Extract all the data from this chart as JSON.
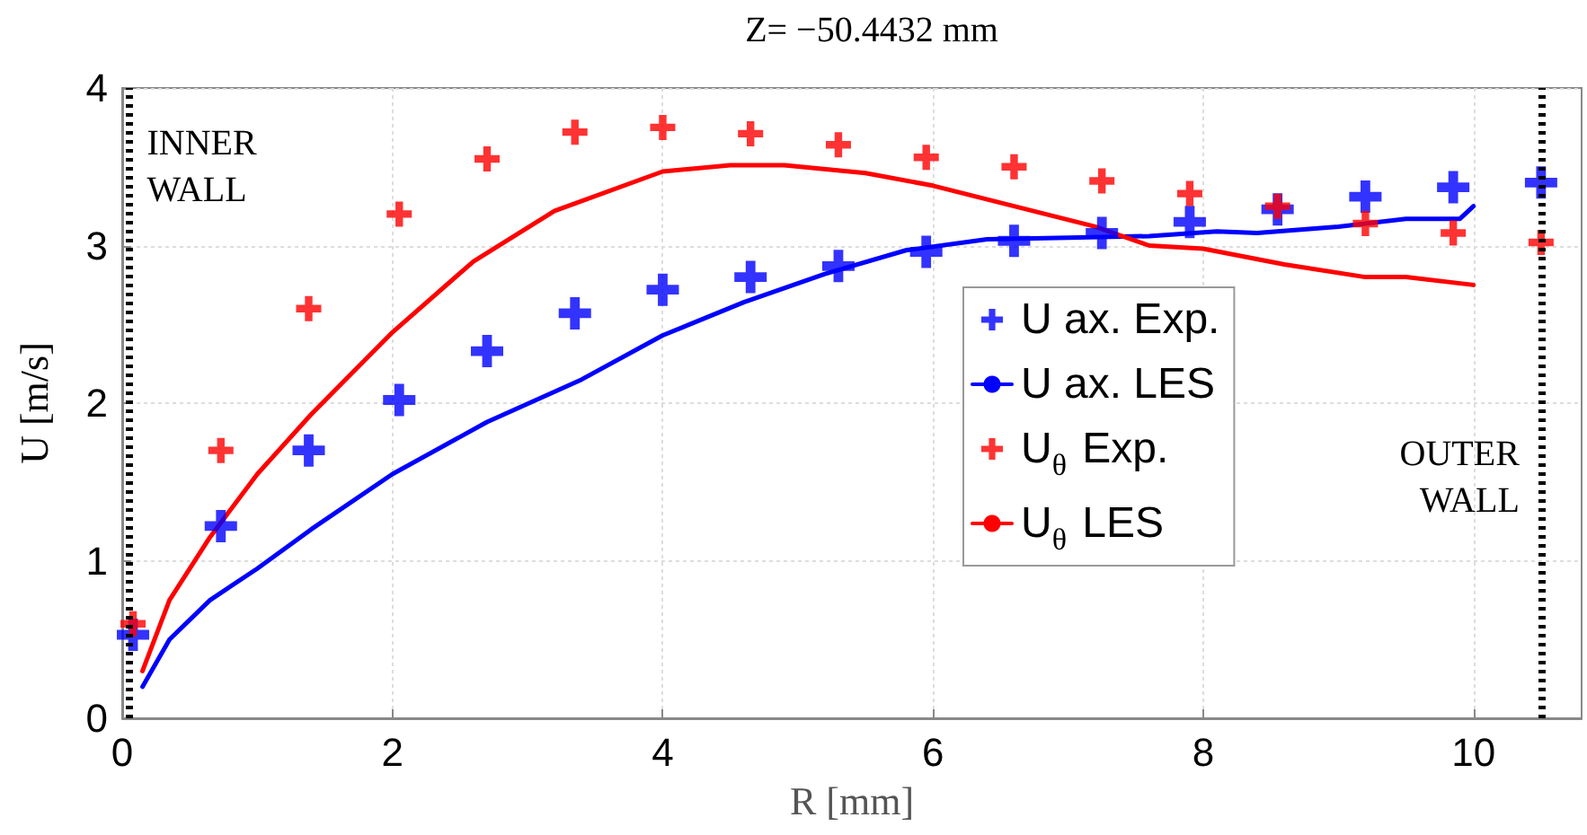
{
  "chart_data": {
    "type": "scatter",
    "title": "Z= −50.4432 mm",
    "xlabel": "R [mm]",
    "ylabel": "U [m/s]",
    "xlim": [
      0,
      10.8
    ],
    "xticks": [
      0,
      2,
      4,
      6,
      8,
      10
    ],
    "ylim": [
      0,
      4
    ],
    "yticks": [
      0,
      1,
      2,
      3,
      4
    ],
    "grid": true,
    "legend": "right",
    "series": [
      {
        "name": "U ax. Exp.",
        "marker": "cross",
        "color": "#0000ff",
        "x": [
          0.08,
          0.73,
          1.38,
          2.05,
          2.7,
          3.35,
          4.0,
          4.65,
          5.3,
          5.95,
          6.6,
          7.25,
          7.9,
          8.55,
          9.2,
          9.85,
          10.5
        ],
        "values": [
          0.53,
          1.22,
          1.7,
          2.02,
          2.33,
          2.57,
          2.72,
          2.8,
          2.87,
          2.96,
          3.03,
          3.08,
          3.15,
          3.23,
          3.31,
          3.37,
          3.4
        ]
      },
      {
        "name": "U ax. LES",
        "type": "line",
        "marker": "none",
        "color": "#0000ff",
        "x": [
          0.15,
          0.35,
          0.65,
          1.0,
          1.4,
          2.0,
          2.7,
          3.4,
          4.0,
          4.6,
          5.2,
          5.8,
          6.4,
          7.0,
          7.6,
          8.1,
          8.4,
          9.0,
          9.5,
          9.9,
          10.0
        ],
        "values": [
          0.2,
          0.5,
          0.75,
          0.95,
          1.2,
          1.55,
          1.88,
          2.15,
          2.43,
          2.64,
          2.82,
          2.97,
          3.04,
          3.05,
          3.06,
          3.09,
          3.08,
          3.12,
          3.17,
          3.17,
          3.25
        ]
      },
      {
        "name": "U$_{θ}$ Exp.",
        "marker": "cross",
        "color": "#ff0000",
        "x": [
          0.08,
          0.73,
          1.38,
          2.05,
          2.7,
          3.35,
          4.0,
          4.65,
          5.3,
          5.95,
          6.6,
          7.25,
          7.9,
          8.55,
          9.2,
          9.85,
          10.5
        ],
        "values": [
          0.6,
          1.7,
          2.6,
          3.2,
          3.55,
          3.72,
          3.75,
          3.71,
          3.64,
          3.56,
          3.5,
          3.41,
          3.33,
          3.25,
          3.14,
          3.08,
          3.02
        ]
      },
      {
        "name": "U$_{θ}$ LES",
        "type": "line",
        "marker": "none",
        "color": "#ff0000",
        "x": [
          0.15,
          0.35,
          0.65,
          1.0,
          1.4,
          2.0,
          2.6,
          3.2,
          4.0,
          4.5,
          4.9,
          5.5,
          6.0,
          6.6,
          7.2,
          7.6,
          8.0,
          8.6,
          9.2,
          9.5,
          10.0
        ],
        "values": [
          0.3,
          0.75,
          1.15,
          1.55,
          1.93,
          2.45,
          2.9,
          3.22,
          3.47,
          3.51,
          3.51,
          3.46,
          3.38,
          3.25,
          3.12,
          3.0,
          2.98,
          2.88,
          2.8,
          2.8,
          2.75
        ]
      }
    ],
    "ref_lines": [
      {
        "axis": "x",
        "value": 0.05,
        "label": "INNER\nWALL",
        "color": "#000000",
        "line_style": "dotted"
      },
      {
        "axis": "x",
        "value": 10.5,
        "label": "OUTER\nWALL",
        "color": "#000000",
        "line_style": "dotted"
      }
    ]
  }
}
